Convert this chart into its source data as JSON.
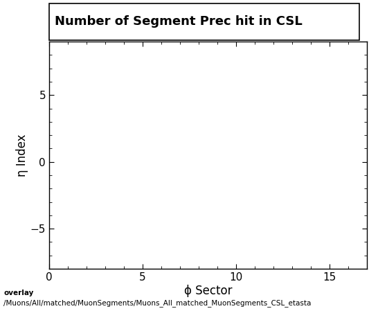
{
  "title": "Number of Segment Prec hit in CSL",
  "xlabel": "ϕ Sector",
  "ylabel": "η Index",
  "xlim": [
    0,
    17
  ],
  "ylim": [
    -8,
    9
  ],
  "xticks": [
    0,
    5,
    10,
    15
  ],
  "yticks": [
    -5,
    0,
    5
  ],
  "background_color": "#ffffff",
  "plot_bg_color": "#ffffff",
  "caption_line1": "overlay",
  "caption_line2": "/Muons/All/matched/MuonSegments/Muons_All_matched_MuonSegments_CSL_etasta",
  "title_fontsize": 13,
  "axis_label_fontsize": 12,
  "tick_fontsize": 11,
  "caption_fontsize": 7.5
}
